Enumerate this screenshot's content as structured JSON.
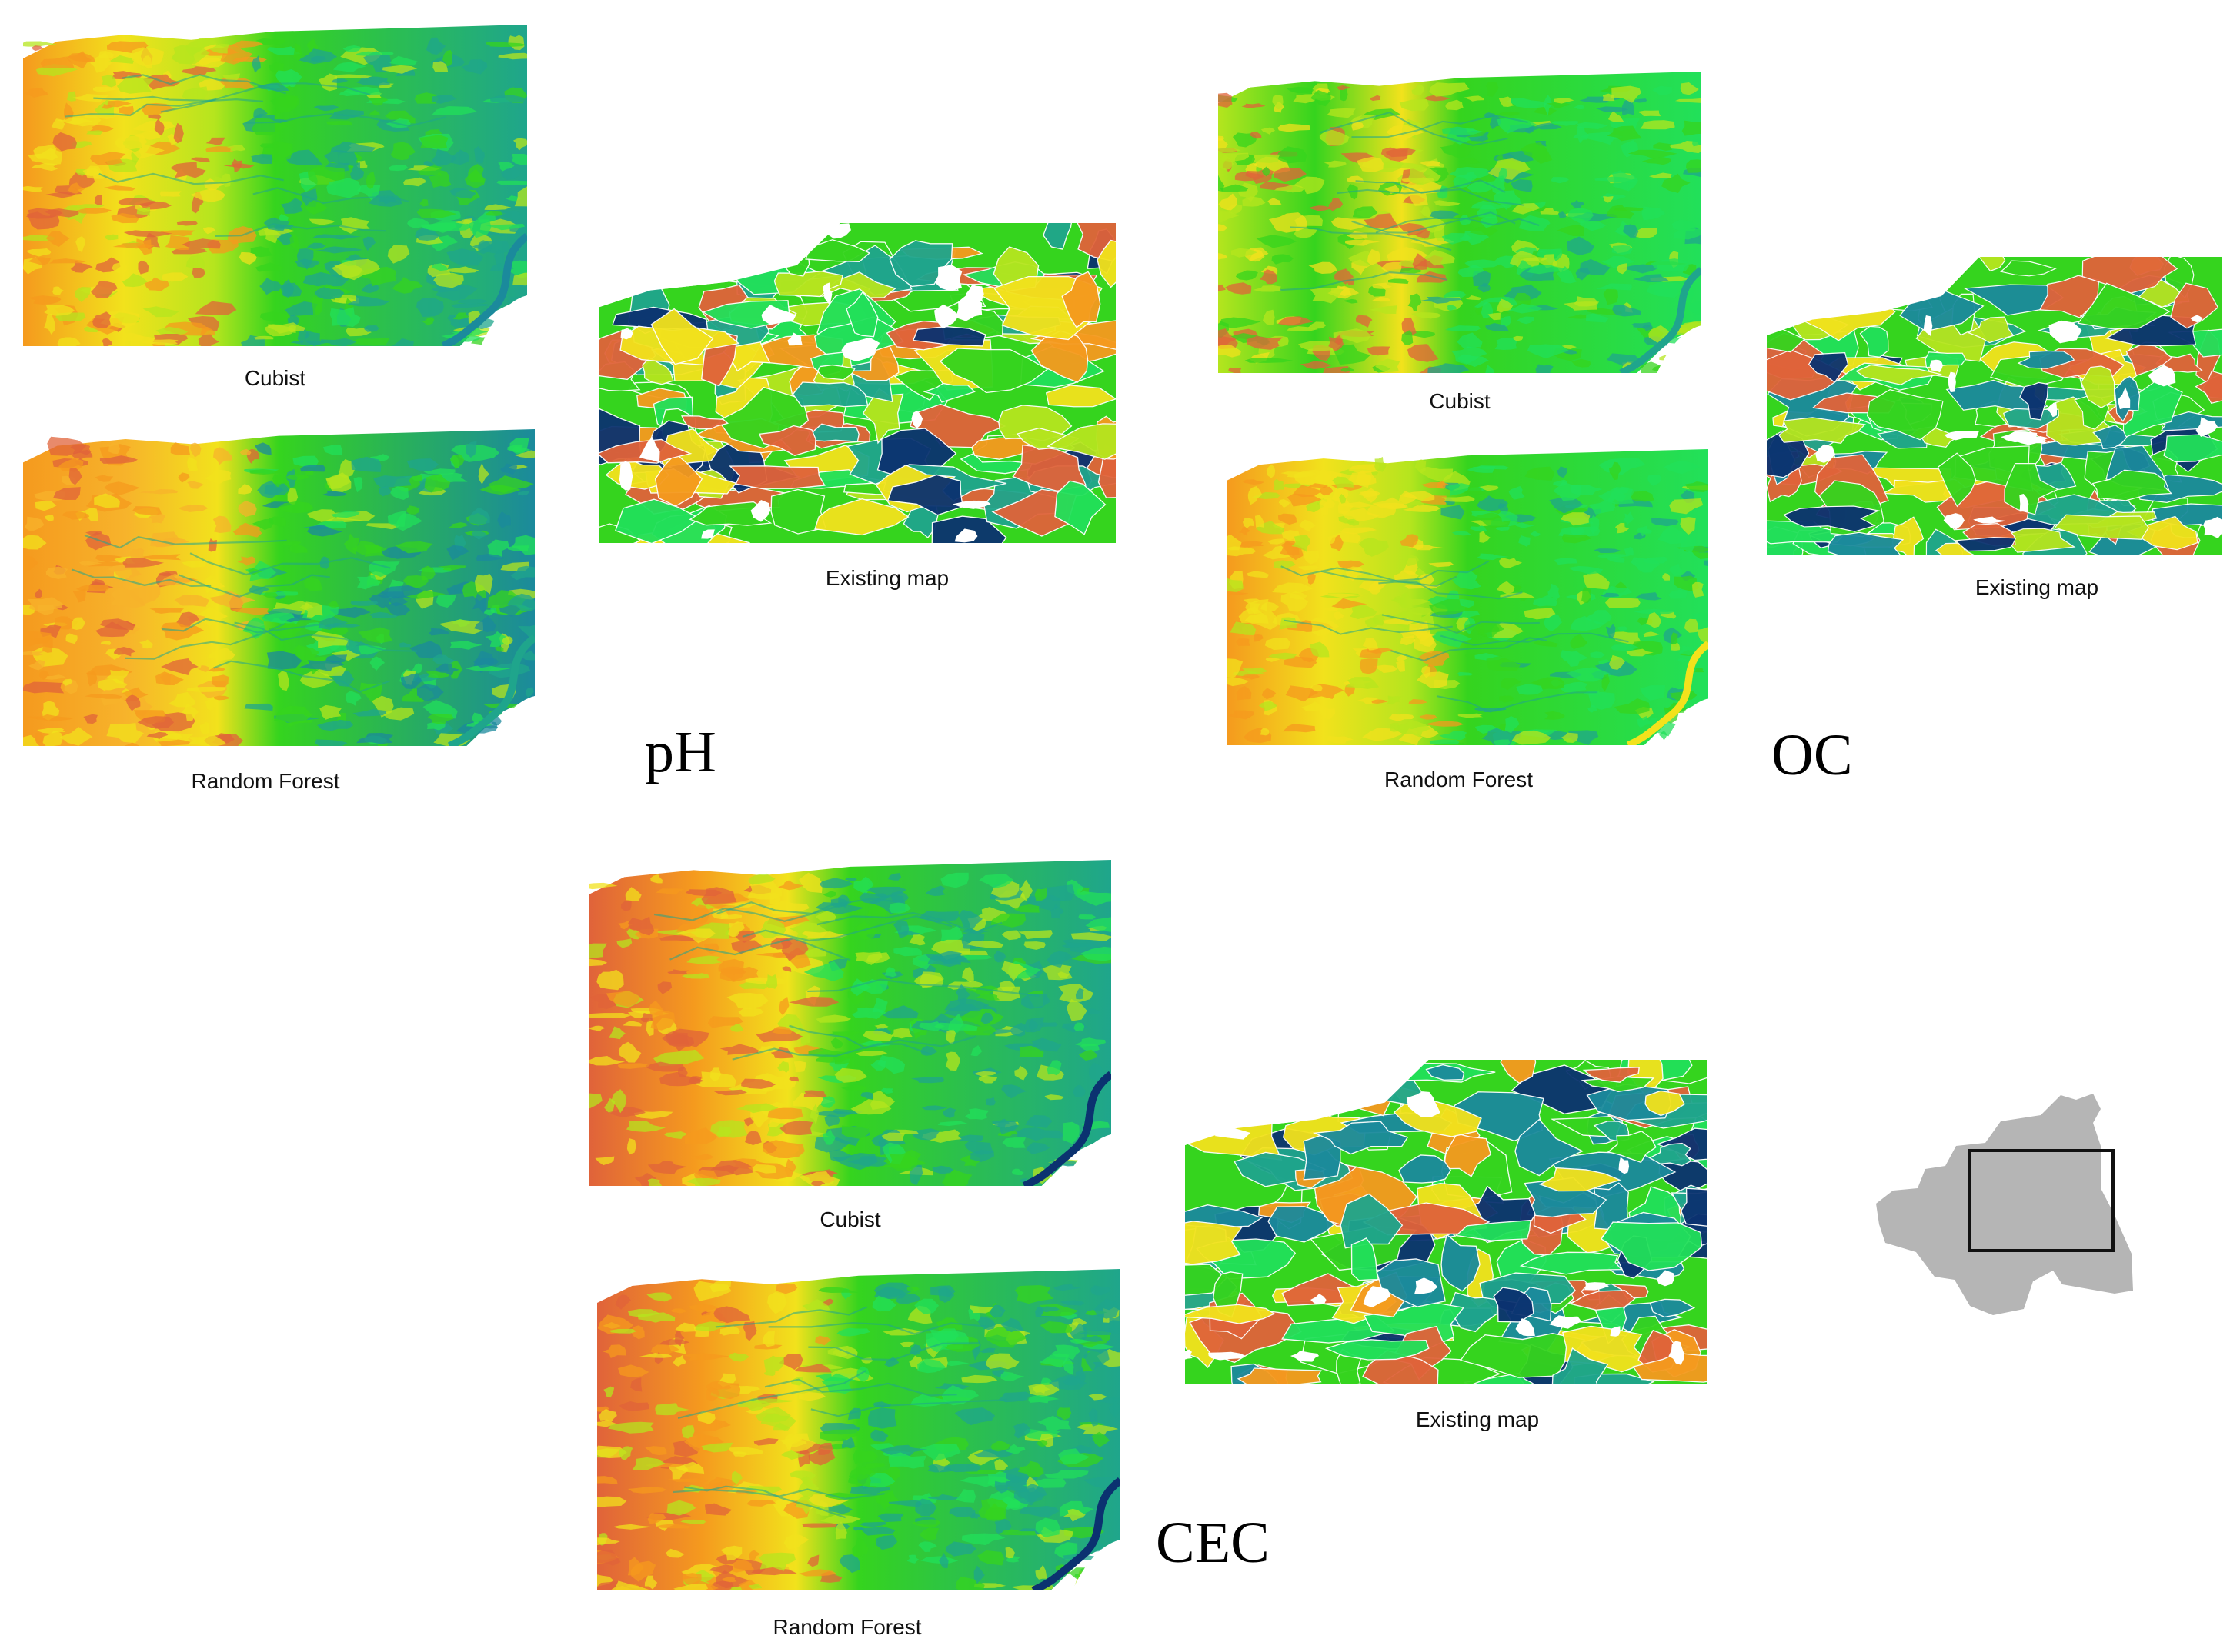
{
  "groups": {
    "ph": {
      "label": "pH",
      "panels": {
        "cubist": {
          "caption": "Cubist",
          "style": "pred-a",
          "seed": 11
        },
        "rf": {
          "caption": "Random Forest",
          "style": "pred-b",
          "seed": 23
        },
        "existing": {
          "caption": "Existing map",
          "style": "existing",
          "seed": 37
        }
      }
    },
    "oc": {
      "label": "OC",
      "panels": {
        "cubist": {
          "caption": "Cubist",
          "style": "pred-oc",
          "seed": 41
        },
        "rf": {
          "caption": "Random Forest",
          "style": "pred-oc-b",
          "seed": 53
        },
        "existing": {
          "caption": "Existing map",
          "style": "existing-oc",
          "seed": 67
        }
      }
    },
    "cec": {
      "label": "CEC",
      "panels": {
        "cubist": {
          "caption": "Cubist",
          "style": "pred-c",
          "seed": 71
        },
        "rf": {
          "caption": "Random Forest",
          "style": "pred-c",
          "seed": 83
        },
        "existing": {
          "caption": "Existing map",
          "style": "existing-cec",
          "seed": 97
        }
      }
    }
  },
  "palette": {
    "orange": "#f59a1e",
    "red_orange": "#e0633a",
    "yellow": "#f2e21c",
    "yellow_green": "#b5e51e",
    "green": "#35d41e",
    "bright_green": "#22e05a",
    "teal": "#1fa58c",
    "blue_green": "#1b8a9c",
    "navy": "#0b3270",
    "white": "#ffffff"
  },
  "inset": {
    "region_color": "#b5b5b5",
    "frame_color": "#111111"
  }
}
